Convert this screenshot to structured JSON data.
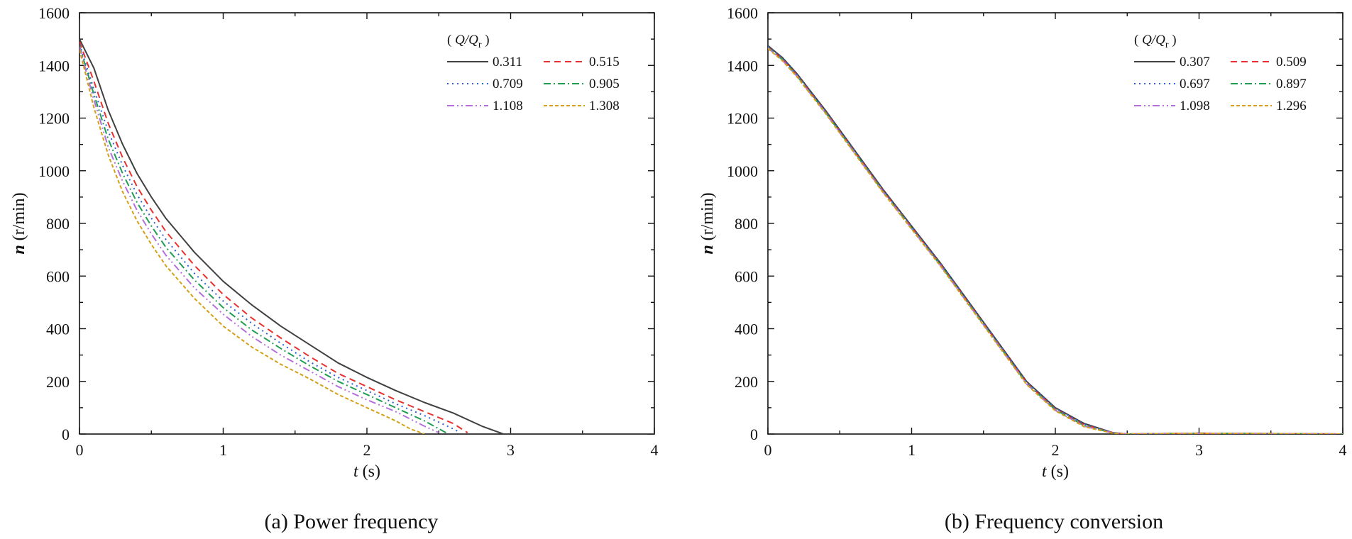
{
  "chart_data": [
    {
      "type": "line",
      "caption": "(a) Power frequency",
      "xlabel_var": "t",
      "xlabel_unit": " (s)",
      "ylabel_var": "n",
      "ylabel_unit": " (r/min)",
      "xlim": [
        0,
        4
      ],
      "ylim": [
        0,
        1600
      ],
      "xticks": [
        0,
        1,
        2,
        3,
        4
      ],
      "yticks": [
        0,
        200,
        400,
        600,
        800,
        1000,
        1200,
        1400,
        1600
      ],
      "legend_title_var": "Q/Q",
      "legend_title_sub": "r",
      "legend_title_open": "(",
      "legend_title_close": ")",
      "series": [
        {
          "name": "0.311",
          "color": "#404040",
          "dash": "solid",
          "x": [
            0,
            0.1,
            0.2,
            0.3,
            0.4,
            0.5,
            0.6,
            0.8,
            1.0,
            1.2,
            1.4,
            1.6,
            1.8,
            2.0,
            2.2,
            2.4,
            2.6,
            2.8,
            2.95,
            3.0,
            4.0
          ],
          "y": [
            1500,
            1390,
            1230,
            1100,
            990,
            900,
            820,
            690,
            580,
            490,
            410,
            340,
            270,
            215,
            165,
            120,
            80,
            30,
            0,
            0,
            0
          ]
        },
        {
          "name": "0.515",
          "color": "#e8312f",
          "dash": "dash",
          "x": [
            0,
            0.1,
            0.2,
            0.3,
            0.4,
            0.5,
            0.6,
            0.8,
            1.0,
            1.2,
            1.4,
            1.6,
            1.8,
            2.0,
            2.2,
            2.4,
            2.6,
            2.7
          ],
          "y": [
            1490,
            1340,
            1180,
            1050,
            940,
            850,
            770,
            640,
            530,
            440,
            365,
            295,
            230,
            180,
            130,
            85,
            40,
            5
          ]
        },
        {
          "name": "0.709",
          "color": "#2f5fd6",
          "dash": "dot",
          "x": [
            0,
            0.1,
            0.2,
            0.3,
            0.4,
            0.5,
            0.6,
            0.8,
            1.0,
            1.2,
            1.4,
            1.6,
            1.8,
            2.0,
            2.2,
            2.4,
            2.6,
            2.65
          ],
          "y": [
            1480,
            1310,
            1150,
            1020,
            910,
            820,
            740,
            610,
            505,
            420,
            345,
            275,
            215,
            165,
            115,
            70,
            20,
            5
          ]
        },
        {
          "name": "0.905",
          "color": "#1f9e52",
          "dash": "dashdot",
          "x": [
            0,
            0.1,
            0.2,
            0.3,
            0.4,
            0.5,
            0.6,
            0.8,
            1.0,
            1.2,
            1.4,
            1.6,
            1.8,
            2.0,
            2.2,
            2.4,
            2.55
          ],
          "y": [
            1475,
            1290,
            1120,
            990,
            880,
            790,
            710,
            585,
            480,
            395,
            325,
            260,
            200,
            150,
            100,
            50,
            5
          ]
        },
        {
          "name": "1.108",
          "color": "#b46fdd",
          "dash": "dashdotdot",
          "x": [
            0,
            0.1,
            0.2,
            0.3,
            0.4,
            0.5,
            0.6,
            0.8,
            1.0,
            1.2,
            1.4,
            1.6,
            1.8,
            2.0,
            2.2,
            2.4,
            2.5
          ],
          "y": [
            1470,
            1270,
            1090,
            960,
            850,
            760,
            680,
            555,
            455,
            370,
            300,
            240,
            180,
            130,
            85,
            30,
            5
          ]
        },
        {
          "name": "1.308",
          "color": "#d4a017",
          "dash": "shortdash",
          "x": [
            0,
            0.1,
            0.2,
            0.3,
            0.4,
            0.5,
            0.6,
            0.8,
            1.0,
            1.2,
            1.4,
            1.6,
            1.8,
            2.0,
            2.2,
            2.3,
            2.4
          ],
          "y": [
            1460,
            1240,
            1060,
            920,
            810,
            720,
            640,
            515,
            410,
            330,
            265,
            210,
            150,
            100,
            50,
            20,
            0
          ]
        }
      ]
    },
    {
      "type": "line",
      "caption": "(b) Frequency conversion",
      "xlabel_var": "t",
      "xlabel_unit": " (s)",
      "ylabel_var": "n",
      "ylabel_unit": " (r/min)",
      "xlim": [
        0,
        4
      ],
      "ylim": [
        0,
        1600
      ],
      "xticks": [
        0,
        1,
        2,
        3,
        4
      ],
      "yticks": [
        0,
        200,
        400,
        600,
        800,
        1000,
        1200,
        1400,
        1600
      ],
      "legend_title_var": "Q/Q",
      "legend_title_sub": "r",
      "legend_title_open": "(",
      "legend_title_close": ")",
      "series": [
        {
          "name": "0.307",
          "color": "#404040",
          "dash": "solid",
          "x": [
            0,
            0.1,
            0.2,
            0.4,
            0.6,
            0.8,
            1.0,
            1.2,
            1.4,
            1.6,
            1.8,
            2.0,
            2.2,
            2.4,
            2.5,
            3.0,
            4.0
          ],
          "y": [
            1475,
            1430,
            1370,
            1230,
            1080,
            930,
            790,
            650,
            500,
            350,
            200,
            100,
            40,
            5,
            0,
            3,
            0
          ]
        },
        {
          "name": "0.509",
          "color": "#e8312f",
          "dash": "dash",
          "x": [
            0,
            0.1,
            0.2,
            0.4,
            0.6,
            0.8,
            1.0,
            1.2,
            1.4,
            1.6,
            1.8,
            2.0,
            2.2,
            2.4,
            2.5,
            3.0,
            4.0
          ],
          "y": [
            1470,
            1425,
            1365,
            1225,
            1075,
            925,
            785,
            645,
            495,
            345,
            195,
            95,
            35,
            5,
            0,
            3,
            0
          ]
        },
        {
          "name": "0.697",
          "color": "#2f5fd6",
          "dash": "dot",
          "x": [
            0,
            0.1,
            0.2,
            0.4,
            0.6,
            0.8,
            1.0,
            1.2,
            1.4,
            1.6,
            1.8,
            2.0,
            2.2,
            2.4,
            2.5,
            3.0,
            4.0
          ],
          "y": [
            1472,
            1428,
            1368,
            1228,
            1078,
            928,
            788,
            648,
            498,
            348,
            198,
            98,
            38,
            5,
            0,
            3,
            0
          ]
        },
        {
          "name": "0.897",
          "color": "#1f9e52",
          "dash": "dashdot",
          "x": [
            0,
            0.1,
            0.2,
            0.4,
            0.6,
            0.8,
            1.0,
            1.2,
            1.4,
            1.6,
            1.8,
            2.0,
            2.2,
            2.4,
            2.5,
            3.0,
            4.0
          ],
          "y": [
            1468,
            1422,
            1362,
            1222,
            1072,
            922,
            782,
            642,
            492,
            342,
            192,
            92,
            32,
            4,
            0,
            3,
            0
          ]
        },
        {
          "name": "1.098",
          "color": "#b46fdd",
          "dash": "dashdotdot",
          "x": [
            0,
            0.1,
            0.2,
            0.4,
            0.6,
            0.8,
            1.0,
            1.2,
            1.4,
            1.6,
            1.8,
            2.0,
            2.2,
            2.4,
            2.5,
            3.0,
            4.0
          ],
          "y": [
            1466,
            1420,
            1360,
            1220,
            1070,
            920,
            780,
            640,
            490,
            340,
            190,
            90,
            30,
            4,
            0,
            3,
            0
          ]
        },
        {
          "name": "1.296",
          "color": "#d4a017",
          "dash": "shortdash",
          "x": [
            0,
            0.1,
            0.2,
            0.4,
            0.6,
            0.8,
            1.0,
            1.2,
            1.4,
            1.6,
            1.8,
            2.0,
            2.2,
            2.4,
            2.5,
            3.0,
            4.0
          ],
          "y": [
            1464,
            1418,
            1358,
            1218,
            1068,
            918,
            778,
            638,
            488,
            338,
            188,
            88,
            28,
            3,
            0,
            3,
            0
          ]
        }
      ]
    }
  ]
}
